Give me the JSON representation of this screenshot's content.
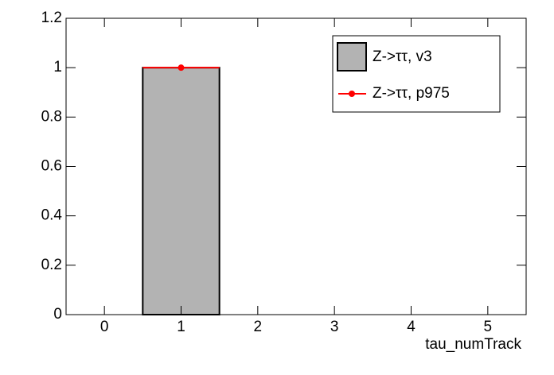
{
  "chart_data": {
    "type": "histogram",
    "xlabel": "tau_numTrack",
    "bins": [
      -0.5,
      0.5,
      1.5,
      2.5,
      3.5,
      4.5,
      5.5
    ],
    "xlim": [
      -0.5,
      5.5
    ],
    "xticks": [
      0,
      1,
      2,
      3,
      4,
      5
    ],
    "ylim": [
      0,
      1.2
    ],
    "yticks": [
      0,
      0.2,
      0.4,
      0.6,
      0.8,
      1,
      1.2
    ],
    "legend": "top-right",
    "series": [
      {
        "name": "Z->ττ, v3",
        "color": "#b3b3b3",
        "counts": [
          0,
          1,
          0,
          0,
          0,
          0
        ]
      },
      {
        "name": "Z->ττ, p975",
        "color": "#ff0000",
        "type": "points",
        "x": [
          1
        ],
        "values": [
          1
        ],
        "xerr": [
          0.5
        ]
      }
    ]
  }
}
